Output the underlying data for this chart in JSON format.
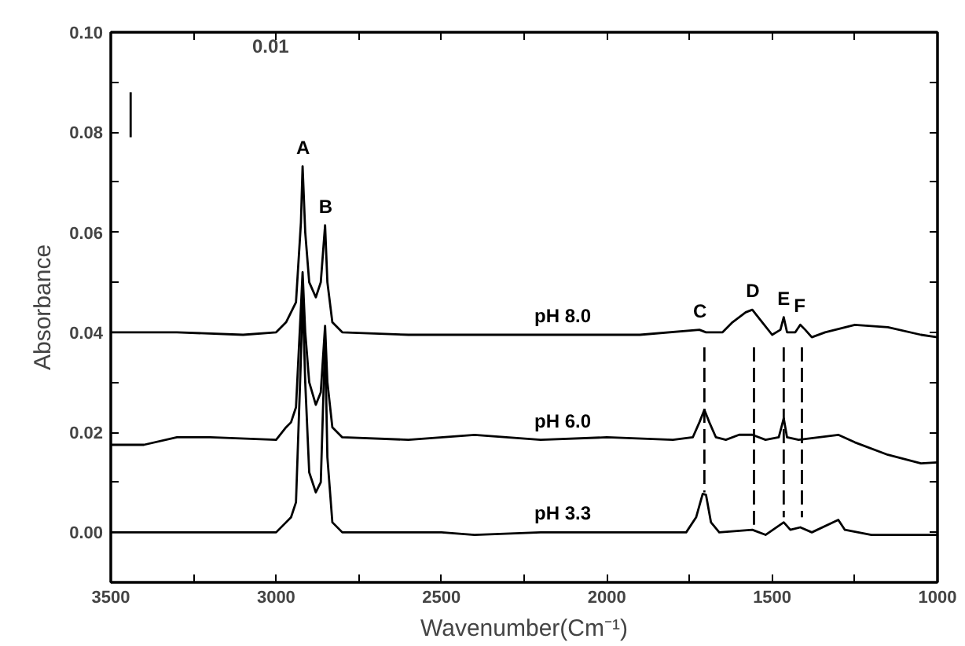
{
  "chart_data": {
    "type": "line",
    "xlabel": "Wavenumber(Cm⁻¹)",
    "ylabel": "Absorbance",
    "xlim": [
      3500,
      1000
    ],
    "ylim": [
      -0.01,
      0.1
    ],
    "xticks": [
      3500,
      {
        "value": 3250,
        "label": null
      },
      3000,
      {
        "value": 2750,
        "label": null
      },
      2500,
      {
        "value": 2250,
        "label": null
      },
      2000,
      {
        "value": 1750,
        "label": null
      },
      1500,
      {
        "value": 1250,
        "label": null
      },
      1000
    ],
    "yticks": [
      {
        "value": 0.0,
        "label": "0.00"
      },
      {
        "value": 0.01,
        "label": null
      },
      {
        "value": 0.02,
        "label": "0.02"
      },
      {
        "value": 0.03,
        "label": null
      },
      {
        "value": 0.04,
        "label": "0.04"
      },
      {
        "value": 0.05,
        "label": null
      },
      {
        "value": 0.06,
        "label": "0.06"
      },
      {
        "value": 0.07,
        "label": null
      },
      {
        "value": 0.08,
        "label": "0.08"
      },
      {
        "value": 0.09,
        "label": null
      },
      {
        "value": 0.1,
        "label": "0.10"
      }
    ],
    "grid": false,
    "line_style": "solid",
    "series": [
      {
        "color": "#000000",
        "x": [
          3500,
          3300,
          3100,
          3000,
          2970,
          2955,
          2940,
          2925,
          2920,
          2912,
          2900,
          2880,
          2865,
          2852,
          2845,
          2830,
          2800,
          2600,
          2200,
          1900,
          1720,
          1700,
          1650,
          1620,
          1580,
          1560,
          1530,
          1500,
          1475,
          1465,
          1455,
          1430,
          1415,
          1400,
          1380,
          1340,
          1250,
          1150,
          1050,
          1000
        ],
        "values": [
          0.04,
          0.04,
          0.0395,
          0.04,
          0.042,
          0.044,
          0.046,
          0.062,
          0.0732,
          0.06,
          0.05,
          0.047,
          0.05,
          0.0614,
          0.05,
          0.042,
          0.04,
          0.0395,
          0.0395,
          0.0395,
          0.0405,
          0.04,
          0.04,
          0.042,
          0.044,
          0.0445,
          0.042,
          0.0395,
          0.0405,
          0.043,
          0.04,
          0.04,
          0.0415,
          0.0405,
          0.039,
          0.04,
          0.0415,
          0.041,
          0.0395,
          0.039
        ]
      },
      {
        "color": "#000000",
        "x": [
          3500,
          3400,
          3300,
          3200,
          3000,
          2970,
          2955,
          2940,
          2925,
          2920,
          2912,
          2900,
          2880,
          2865,
          2852,
          2845,
          2830,
          2800,
          2600,
          2400,
          2200,
          2000,
          1800,
          1740,
          1720,
          1705,
          1690,
          1670,
          1640,
          1600,
          1560,
          1520,
          1480,
          1465,
          1455,
          1420,
          1300,
          1250,
          1150,
          1050,
          1000
        ],
        "values": [
          0.0175,
          0.0175,
          0.019,
          0.019,
          0.0185,
          0.021,
          0.022,
          0.025,
          0.045,
          0.052,
          0.04,
          0.03,
          0.0255,
          0.028,
          0.0413,
          0.03,
          0.021,
          0.019,
          0.0185,
          0.0195,
          0.0185,
          0.019,
          0.0185,
          0.019,
          0.022,
          0.0245,
          0.022,
          0.019,
          0.0185,
          0.0195,
          0.0195,
          0.0185,
          0.019,
          0.0228,
          0.019,
          0.0185,
          0.0195,
          0.018,
          0.0155,
          0.0138,
          0.014
        ]
      },
      {
        "color": "#000000",
        "x": [
          3500,
          3000,
          2970,
          2955,
          2940,
          2925,
          2920,
          2912,
          2900,
          2880,
          2865,
          2852,
          2845,
          2830,
          2800,
          2500,
          2400,
          2200,
          2000,
          1760,
          1730,
          1710,
          1700,
          1685,
          1660,
          1560,
          1520,
          1465,
          1445,
          1415,
          1380,
          1300,
          1280,
          1200,
          1000
        ],
        "values": [
          0.0,
          0.0,
          0.002,
          0.003,
          0.006,
          0.035,
          0.048,
          0.03,
          0.012,
          0.008,
          0.01,
          0.0386,
          0.015,
          0.002,
          0.0,
          0.0,
          -0.0005,
          0.0,
          0.0,
          0.0,
          0.003,
          0.0077,
          0.0075,
          0.002,
          0.0,
          0.0005,
          -0.0005,
          0.002,
          0.0005,
          0.001,
          0.0,
          0.0025,
          0.0005,
          -0.0005,
          -0.0005
        ]
      },
      {
        "color": "#000000",
        "line_style": "dashed",
        "x": [
          1705,
          1705
        ],
        "values": [
          0.037,
          0.008
        ]
      },
      {
        "color": "#000000",
        "line_style": "dashed",
        "x": [
          1555,
          1555
        ],
        "values": [
          0.037,
          0.0015
        ]
      },
      {
        "color": "#000000",
        "line_style": "dashed",
        "x": [
          1465,
          1465
        ],
        "values": [
          0.037,
          0.003
        ]
      },
      {
        "color": "#000000",
        "line_style": "dashed",
        "x": [
          1410,
          1410
        ],
        "values": [
          0.037,
          0.003
        ]
      },
      {
        "color": "#000000",
        "x": [
          3440,
          3440
        ],
        "values": [
          0.079,
          0.088
        ]
      }
    ],
    "annotations": [
      {
        "text": "A",
        "x": 2920,
        "y": 0.0732
      },
      {
        "text": "B",
        "x": 2852,
        "y": 0.0614
      },
      {
        "text": "C",
        "x": 1720,
        "y": 0.0405
      },
      {
        "text": "D",
        "x": 1560,
        "y": 0.0445
      },
      {
        "text": "E",
        "x": 1465,
        "y": 0.043
      },
      {
        "text": "F",
        "x": 1415,
        "y": 0.0415
      },
      {
        "text": "pH 8.0",
        "x": 2200,
        "y": 0.0395
      },
      {
        "text": "pH 6.0",
        "x": 2200,
        "y": 0.0185
      },
      {
        "text": "pH 3.3",
        "x": 2200,
        "y": 0.0
      },
      "0.01"
    ]
  }
}
